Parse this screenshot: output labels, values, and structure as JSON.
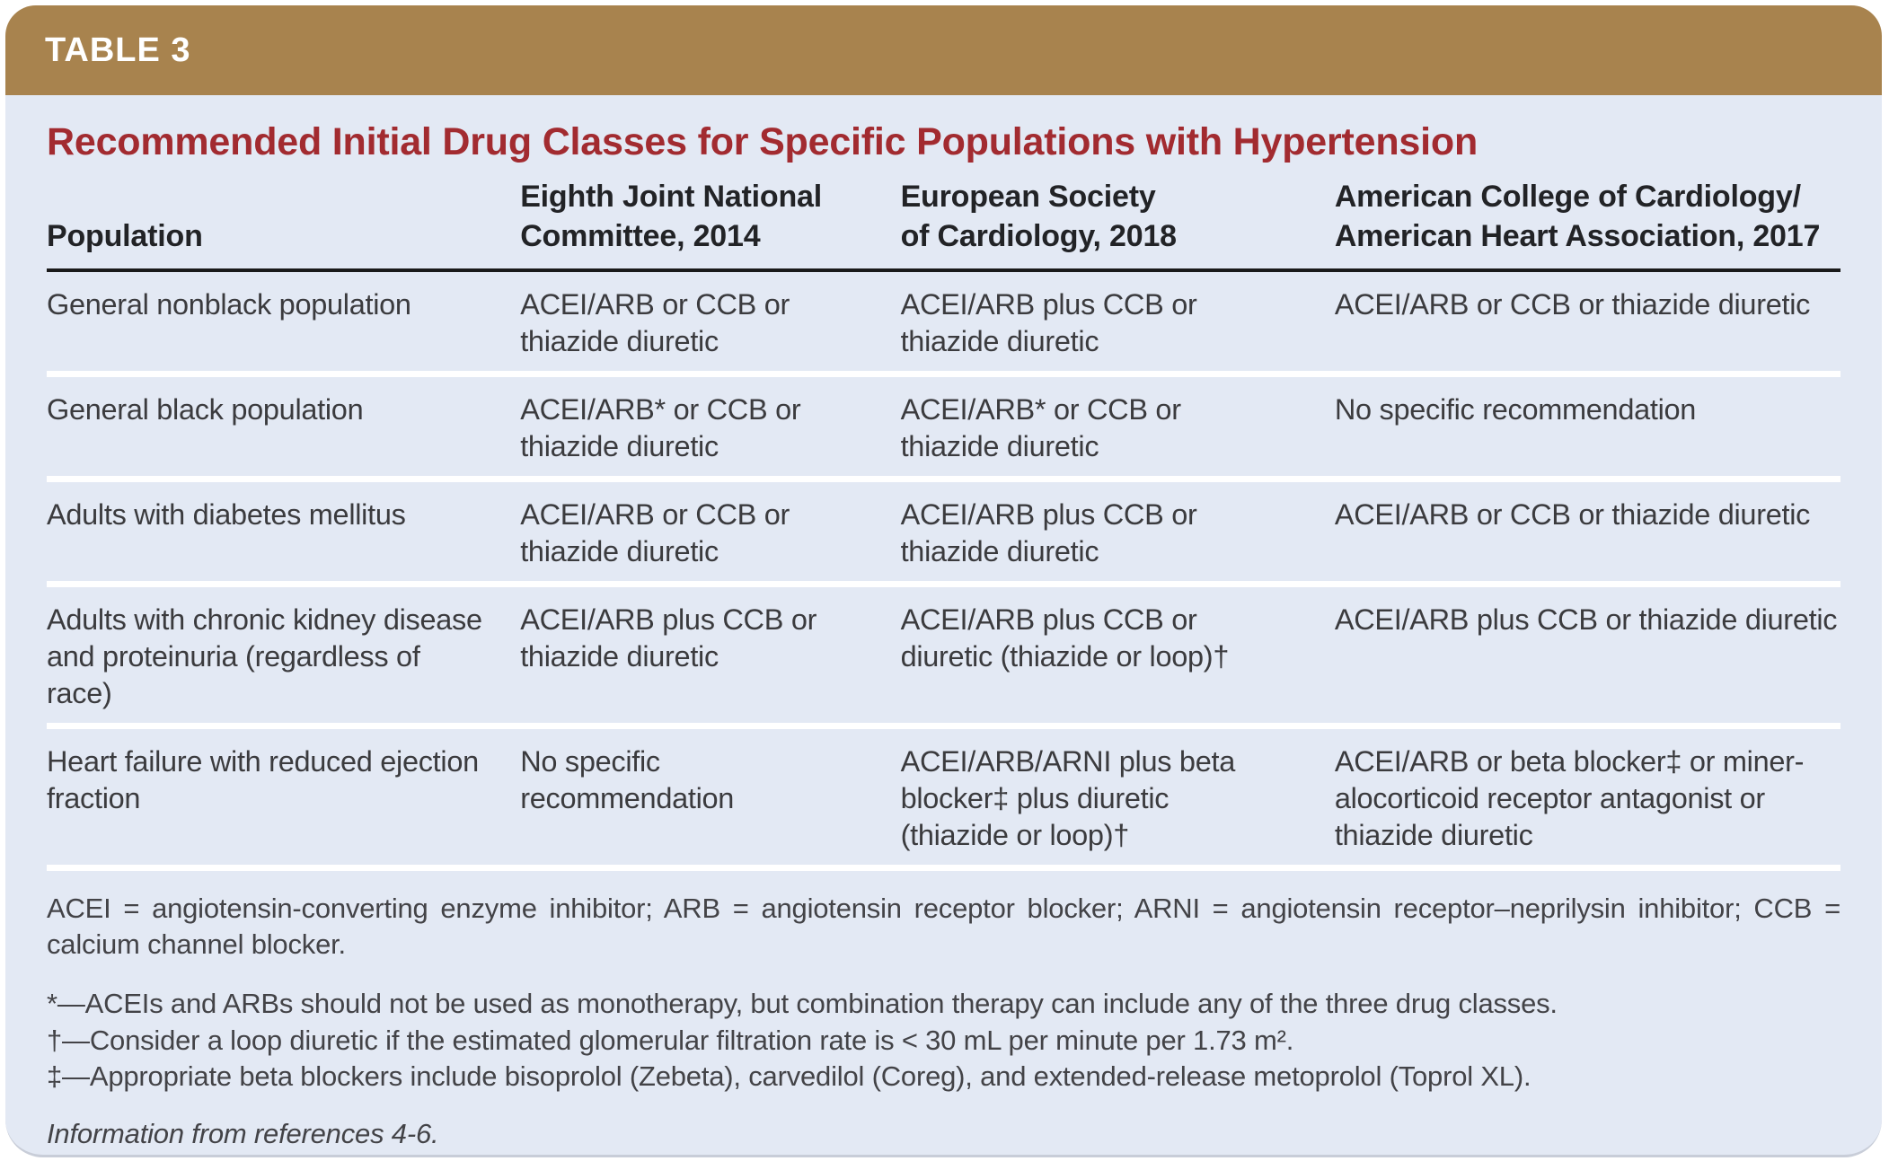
{
  "header": {
    "tag": "TABLE 3",
    "title": "Recommended Initial Drug Classes for Specific Populations with Hypertension"
  },
  "table": {
    "columns": [
      "Population",
      "Eighth Joint National\nCommittee, 2014",
      "European Society\nof Cardiology, 2018",
      "American College of Cardiology/\nAmerican Heart Association, 2017"
    ],
    "rows": [
      {
        "cells": [
          "General nonblack population",
          "ACEI/ARB or CCB or thiazide diuretic",
          "ACEI/ARB plus CCB or thiazide diuretic",
          "ACEI/ARB or CCB or thiazide diuretic"
        ]
      },
      {
        "cells": [
          "General black population",
          "ACEI/ARB* or CCB or thiazide diuretic",
          "ACEI/ARB* or CCB or thiazide diuretic",
          "No specific recommendation"
        ]
      },
      {
        "cells": [
          "Adults with diabetes mellitus",
          "ACEI/ARB or CCB or thiazide diuretic",
          "ACEI/ARB plus CCB or thiazide diuretic",
          "ACEI/ARB or CCB or thiazide diuretic"
        ]
      },
      {
        "cells": [
          "Adults with chronic kidney disease and proteinuria (regardless of race)",
          "ACEI/ARB plus CCB or thiazide diuretic",
          "ACEI/ARB plus CCB or diuretic (thiazide or loop)†",
          "ACEI/ARB plus CCB or thiazide diuretic"
        ]
      },
      {
        "cells": [
          "Heart failure with reduced ejection fraction",
          "No specific recommendation",
          "ACEI/ARB/ARNI plus beta blocker‡ plus diuretic (thiazide or loop)†",
          "ACEI/ARB or beta blocker‡ or miner­alocorticoid receptor antagonist or thiazide diuretic"
        ]
      }
    ]
  },
  "footnotes": {
    "abbreviations": "ACEI = angiotensin-converting enzyme inhibitor; ARB = angiotensin receptor blocker; ARNI = angiotensin receptor–neprilysin inhibitor; CCB = calcium channel blocker.",
    "asterisk": "*—ACEIs and ARBs should not be used as monotherapy, but combination therapy can include any of the three drug classes.",
    "dagger": "†—Consider a loop diuretic if the estimated glomerular filtration rate is < 30 mL per minute per 1.73 m².",
    "double_dagger": "‡—Appropriate beta blockers include bisoprolol (Zebeta), carvedilol (Coreg), and extended-release metoprolol (Toprol XL).",
    "source": "Information from references 4-6."
  },
  "colors": {
    "tag_bar_brown": "#A8834E",
    "panel_background": "#E3E9F4",
    "title_red": "#A22B30",
    "header_rule": "#1A1A1A",
    "row_separator": "#FFFFFF",
    "body_text": "#3B3B3E"
  }
}
